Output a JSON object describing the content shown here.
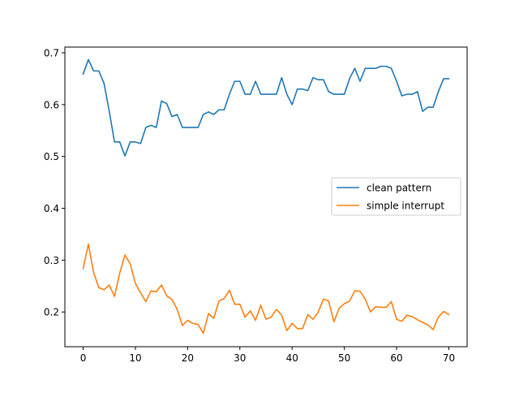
{
  "chart_data": {
    "type": "line",
    "title": "",
    "xlabel": "",
    "ylabel": "",
    "xlim": [
      -3.5,
      73.5
    ],
    "ylim": [
      0.133,
      0.711
    ],
    "xticks": [
      0,
      10,
      20,
      30,
      40,
      50,
      60,
      70
    ],
    "yticks": [
      0.2,
      0.3,
      0.4,
      0.5,
      0.6,
      0.7
    ],
    "grid": false,
    "legend_position": "center-right",
    "x": [
      0,
      1,
      2,
      3,
      4,
      5,
      6,
      7,
      8,
      9,
      10,
      11,
      12,
      13,
      14,
      15,
      16,
      17,
      18,
      19,
      20,
      21,
      22,
      23,
      24,
      25,
      26,
      27,
      28,
      29,
      30,
      31,
      32,
      33,
      34,
      35,
      36,
      37,
      38,
      39,
      40,
      41,
      42,
      43,
      44,
      45,
      46,
      47,
      48,
      49,
      50,
      51,
      52,
      53,
      54,
      55,
      56,
      57,
      58,
      59,
      60,
      61,
      62,
      63,
      64,
      65,
      66,
      67,
      68,
      69,
      70
    ],
    "series": [
      {
        "name": "clean pattern",
        "color": "#1f77b4",
        "values": [
          0.659,
          0.687,
          0.665,
          0.665,
          0.641,
          0.587,
          0.528,
          0.528,
          0.501,
          0.528,
          0.528,
          0.525,
          0.556,
          0.56,
          0.556,
          0.607,
          0.602,
          0.577,
          0.581,
          0.556,
          0.556,
          0.556,
          0.556,
          0.581,
          0.586,
          0.581,
          0.59,
          0.59,
          0.62,
          0.645,
          0.645,
          0.62,
          0.62,
          0.645,
          0.62,
          0.62,
          0.62,
          0.62,
          0.652,
          0.62,
          0.6,
          0.63,
          0.63,
          0.627,
          0.652,
          0.648,
          0.648,
          0.625,
          0.62,
          0.62,
          0.62,
          0.65,
          0.67,
          0.645,
          0.67,
          0.67,
          0.67,
          0.674,
          0.674,
          0.67,
          0.645,
          0.617,
          0.62,
          0.62,
          0.625,
          0.587,
          0.595,
          0.595,
          0.625,
          0.65,
          0.65
        ]
      },
      {
        "name": "simple interrupt",
        "color": "#ff7f0e",
        "values": [
          0.284,
          0.331,
          0.276,
          0.247,
          0.243,
          0.252,
          0.23,
          0.275,
          0.31,
          0.293,
          0.255,
          0.237,
          0.22,
          0.241,
          0.239,
          0.252,
          0.231,
          0.224,
          0.205,
          0.174,
          0.184,
          0.178,
          0.176,
          0.159,
          0.197,
          0.188,
          0.221,
          0.226,
          0.242,
          0.215,
          0.215,
          0.19,
          0.202,
          0.184,
          0.213,
          0.186,
          0.19,
          0.205,
          0.194,
          0.164,
          0.178,
          0.168,
          0.168,
          0.195,
          0.186,
          0.2,
          0.225,
          0.221,
          0.181,
          0.207,
          0.216,
          0.221,
          0.241,
          0.24,
          0.225,
          0.2,
          0.21,
          0.209,
          0.209,
          0.22,
          0.186,
          0.182,
          0.194,
          0.191,
          0.185,
          0.18,
          0.175,
          0.166,
          0.19,
          0.201,
          0.195
        ]
      }
    ]
  }
}
